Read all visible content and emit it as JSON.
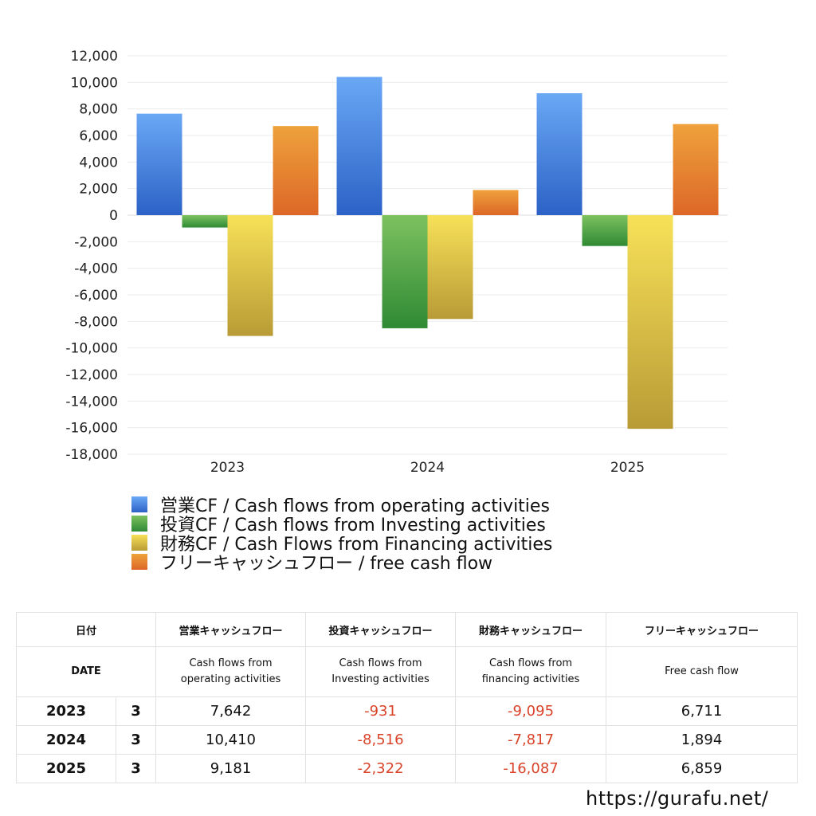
{
  "chart_data": {
    "type": "bar",
    "categories": [
      "2023",
      "2024",
      "2025"
    ],
    "ylim": [
      -18000,
      12000
    ],
    "y_ticks": [
      "12,000",
      "10,000",
      "8,000",
      "6,000",
      "4,000",
      "2,000",
      "0",
      "-2,000",
      "-4,000",
      "-6,000",
      "-8,000",
      "-10,000",
      "-12,000",
      "-14,000",
      "-16,000",
      "-18,000"
    ],
    "grid": true,
    "legend_position": "bottom",
    "series": [
      {
        "name": "営業CF / Cash flows from operating activities",
        "values": [
          7642,
          10410,
          9181
        ],
        "color_top": "#6aa8f5",
        "color_bottom": "#2c62c6"
      },
      {
        "name": "投資CF / Cash flows from Investing activities",
        "values": [
          -931,
          -8516,
          -2322
        ],
        "color_top": "#7dc160",
        "color_bottom": "#2f8a34"
      },
      {
        "name": "財務CF / Cash Flows from Financing activities",
        "values": [
          -9095,
          -7817,
          -16087
        ],
        "color_top": "#f7e158",
        "color_bottom": "#b99b36"
      },
      {
        "name": "フリーキャッシュフロー / free cash flow",
        "values": [
          6711,
          1894,
          6859
        ],
        "color_top": "#eea23c",
        "color_bottom": "#dd6727"
      }
    ]
  },
  "table": {
    "header_ja": [
      "日付",
      "営業キャッシュフロー",
      "投資キャッシュフロー",
      "財務キャッシュフロー",
      "フリーキャッシュフロー"
    ],
    "header_en": {
      "date": "DATE",
      "operating": [
        "Cash flows from",
        "operating activities"
      ],
      "investing": [
        "Cash flows from",
        "Investing activities"
      ],
      "financing": [
        "Cash flows from",
        "financing activities"
      ],
      "free": "Free cash flow"
    },
    "rows": [
      {
        "year": "2023",
        "month": "3",
        "operating": "7,642",
        "investing": "-931",
        "financing": "-9,095",
        "free": "6,711"
      },
      {
        "year": "2024",
        "month": "3",
        "operating": "10,410",
        "investing": "-8,516",
        "financing": "-7,817",
        "free": "1,894"
      },
      {
        "year": "2025",
        "month": "3",
        "operating": "9,181",
        "investing": "-2,322",
        "financing": "-16,087",
        "free": "6,859"
      }
    ]
  },
  "source_url": "https://gurafu.net/"
}
